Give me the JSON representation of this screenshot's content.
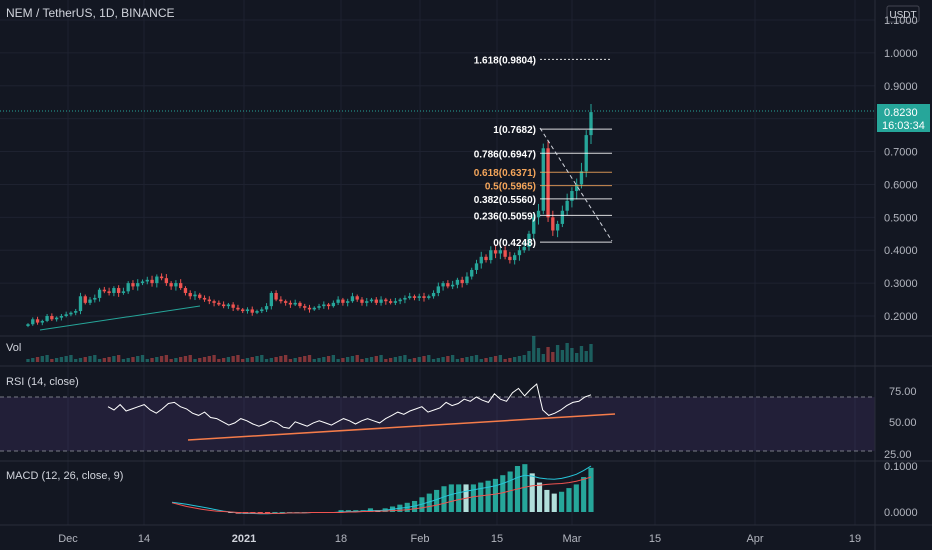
{
  "header": {
    "symbol": "NEM / TetherUS, 1D, BINANCE",
    "currency": "USDT"
  },
  "price_axis": {
    "ticks": [
      "1.1000",
      "1.0000",
      "0.9000",
      "0.8000",
      "0.7000",
      "0.6000",
      "0.5000",
      "0.4000",
      "0.3000",
      "0.2000"
    ],
    "current_price": "0.8230",
    "countdown": "16:03:34"
  },
  "volume_panel": {
    "label": "Vol"
  },
  "rsi_panel": {
    "label": "RSI (14, close)",
    "ticks": [
      "75.00",
      "50.00",
      "25.00"
    ]
  },
  "macd_panel": {
    "label": "MACD (12, 26, close, 9)",
    "ticks": [
      "0.1000",
      "0.0000"
    ]
  },
  "time_axis": {
    "labels": [
      "Dec",
      "14",
      "2021",
      "18",
      "Feb",
      "15",
      "Mar",
      "15",
      "Apr",
      "19"
    ]
  },
  "fib_levels": [
    {
      "label": "1.618(0.9804)",
      "value": 0.9804,
      "color": "#ffffff"
    },
    {
      "label": "1(0.7682)",
      "value": 0.7682,
      "color": "#ffffff"
    },
    {
      "label": "0.786(0.6947)",
      "value": 0.6947,
      "color": "#ffffff"
    },
    {
      "label": "0.618(0.6371)",
      "value": 0.6371,
      "color": "#f5a65b"
    },
    {
      "label": "0.5(0.5965)",
      "value": 0.5965,
      "color": "#f5a65b"
    },
    {
      "label": "0.382(0.5560)",
      "value": 0.556,
      "color": "#ffffff"
    },
    {
      "label": "0.236(0.5059)",
      "value": 0.5059,
      "color": "#ffffff"
    },
    {
      "label": "0(0.4248)",
      "value": 0.4248,
      "color": "#ffffff"
    }
  ],
  "colors": {
    "background": "#131722",
    "up": "#26a69a",
    "down": "#ef5350",
    "rsi_line": "#ffffff",
    "rsi_band": "#7e57c2",
    "trendline": "#f57c4a",
    "macd_line": "#26c6da",
    "signal_line": "#ef5350",
    "grid": "#1e2230",
    "text": "#d1d4dc",
    "price_line": "#26a69a"
  },
  "chart_data": {
    "type": "candlestick",
    "title": "NEM / TetherUS, 1D, BINANCE",
    "ylim": [
      0.15,
      1.12
    ],
    "closes": [
      0.175,
      0.19,
      0.18,
      0.185,
      0.2,
      0.19,
      0.195,
      0.2,
      0.205,
      0.21,
      0.215,
      0.26,
      0.24,
      0.25,
      0.255,
      0.28,
      0.275,
      0.27,
      0.285,
      0.27,
      0.275,
      0.3,
      0.29,
      0.3,
      0.305,
      0.31,
      0.3,
      0.32,
      0.315,
      0.3,
      0.29,
      0.3,
      0.285,
      0.27,
      0.26,
      0.265,
      0.255,
      0.25,
      0.245,
      0.24,
      0.235,
      0.23,
      0.235,
      0.225,
      0.22,
      0.215,
      0.22,
      0.21,
      0.215,
      0.22,
      0.23,
      0.27,
      0.25,
      0.245,
      0.24,
      0.235,
      0.24,
      0.23,
      0.225,
      0.22,
      0.225,
      0.23,
      0.235,
      0.23,
      0.24,
      0.25,
      0.24,
      0.245,
      0.26,
      0.25,
      0.24,
      0.245,
      0.25,
      0.24,
      0.25,
      0.245,
      0.24,
      0.245,
      0.25,
      0.255,
      0.26,
      0.255,
      0.26,
      0.255,
      0.26,
      0.27,
      0.29,
      0.3,
      0.29,
      0.295,
      0.31,
      0.3,
      0.32,
      0.34,
      0.36,
      0.38,
      0.37,
      0.4,
      0.39,
      0.4,
      0.38,
      0.37,
      0.385,
      0.4,
      0.41,
      0.45,
      0.5,
      0.52,
      0.71,
      0.5,
      0.46,
      0.48,
      0.52,
      0.55,
      0.58,
      0.6,
      0.64,
      0.75,
      0.82
    ],
    "rsi": [
      66,
      63,
      68,
      62,
      64,
      66,
      68,
      63,
      60,
      64,
      69,
      70,
      66,
      64,
      60,
      58,
      61,
      56,
      55,
      52,
      49,
      51,
      55,
      53,
      50,
      48,
      50,
      53,
      51,
      47,
      46,
      52,
      50,
      48,
      51,
      53,
      51,
      49,
      52,
      55,
      53,
      50,
      53,
      55,
      53,
      51,
      55,
      58,
      61,
      59,
      62,
      64,
      66,
      61,
      63,
      65,
      70,
      67,
      69,
      73,
      71,
      75,
      72,
      70,
      78,
      73,
      71,
      79,
      83,
      76,
      82,
      87,
      63,
      58,
      60,
      63,
      67,
      70,
      71,
      75,
      77
    ],
    "rsi_range": [
      25,
      75
    ],
    "macd": [
      0.021,
      0.019,
      0.017,
      0.014,
      0.011,
      0.008,
      0.005,
      0.002,
      0.0,
      -0.002,
      -0.003,
      -0.003,
      -0.004,
      -0.004,
      -0.003,
      -0.003,
      -0.002,
      -0.002,
      -0.002,
      -0.001,
      -0.001,
      -0.001,
      -0.001,
      0.0,
      0.001,
      0.001,
      0.002,
      0.003,
      0.003,
      0.004,
      0.006,
      0.008,
      0.01,
      0.013,
      0.017,
      0.022,
      0.027,
      0.033,
      0.038,
      0.042,
      0.045,
      0.048,
      0.051,
      0.054,
      0.057,
      0.062,
      0.068,
      0.075,
      0.08,
      0.078,
      0.074,
      0.072,
      0.071,
      0.073,
      0.077,
      0.082,
      0.09,
      0.1
    ],
    "signal": [
      0.02,
      0.016,
      0.012,
      0.009,
      0.006,
      0.004,
      0.002,
      0.001,
      0.0,
      -0.001,
      -0.002,
      -0.002,
      -0.003,
      -0.003,
      -0.003,
      -0.003,
      -0.002,
      -0.002,
      -0.002,
      -0.001,
      -0.001,
      -0.001,
      -0.001,
      -0.001,
      0.0,
      0.0,
      0.001,
      0.001,
      0.002,
      0.002,
      0.003,
      0.004,
      0.005,
      0.007,
      0.009,
      0.012,
      0.015,
      0.019,
      0.023,
      0.027,
      0.03,
      0.033,
      0.035,
      0.037,
      0.039,
      0.042,
      0.046,
      0.05,
      0.054,
      0.057,
      0.058,
      0.06,
      0.061,
      0.062,
      0.064,
      0.067,
      0.071,
      0.076
    ]
  }
}
